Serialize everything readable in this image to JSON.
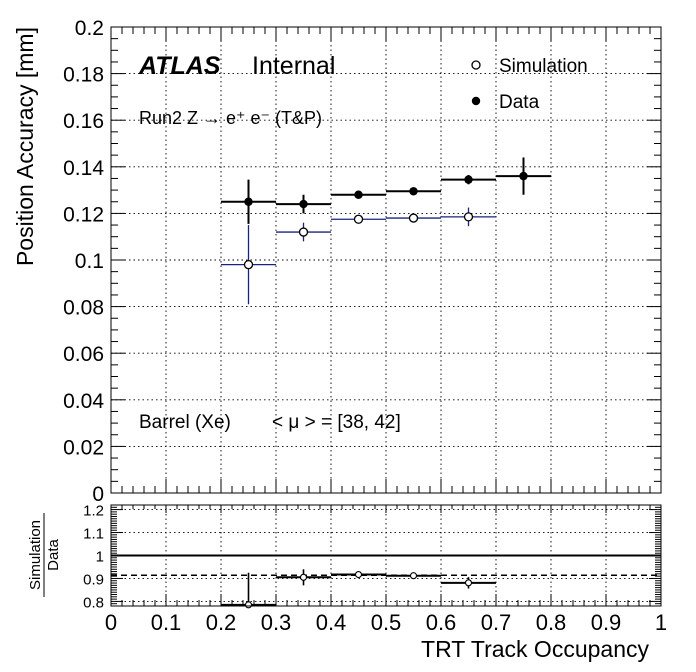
{
  "chart_data": [
    {
      "type": "scatter",
      "panel": "main",
      "xlabel": "",
      "ylabel": "Position Accuracy [mm]",
      "xlim": [
        0,
        1
      ],
      "ylim": [
        0,
        0.2
      ],
      "grid": true,
      "legend_position": "top-right",
      "y_ticks": [
        "0",
        "0.02",
        "0.04",
        "0.06",
        "0.08",
        "0.1",
        "0.12",
        "0.14",
        "0.16",
        "0.18",
        "0.2"
      ],
      "annotations": {
        "atlas": "ATLAS",
        "internal": "Internal",
        "run": "Run2 Z → e⁺ e⁻ (T&P)",
        "region": "Barrel (Xe)",
        "mu": "< μ > = [38, 42]"
      },
      "series": [
        {
          "name": "Simulation",
          "marker": "open-circle",
          "color": "#1a237e",
          "x": [
            0.25,
            0.35,
            0.45,
            0.55,
            0.65
          ],
          "xerr": 0.05,
          "y": [
            0.098,
            0.112,
            0.1175,
            0.118,
            0.1185
          ],
          "yerr": [
            0.017,
            0.004,
            0.0015,
            0.0015,
            0.004
          ]
        },
        {
          "name": "Data",
          "marker": "filled-circle",
          "color": "#000000",
          "x": [
            0.25,
            0.35,
            0.45,
            0.55,
            0.65,
            0.75
          ],
          "xerr": 0.05,
          "y": [
            0.125,
            0.124,
            0.128,
            0.1295,
            0.1345,
            0.136
          ],
          "yerr": [
            0.0095,
            0.004,
            0.0015,
            0.0015,
            0.002,
            0.008
          ]
        }
      ]
    },
    {
      "type": "scatter",
      "panel": "ratio",
      "xlabel": "TRT Track Occupancy",
      "ylabel_top": "Simulation",
      "ylabel_bottom": "Data",
      "xlim": [
        0,
        1
      ],
      "ylim": [
        0.78,
        1.22
      ],
      "grid": true,
      "reference_line": 1.0,
      "fit_line": 0.914,
      "x_ticks": [
        "0",
        "0.1",
        "0.2",
        "0.3",
        "0.4",
        "0.5",
        "0.6",
        "0.7",
        "0.8",
        "0.9",
        "1"
      ],
      "y_ticks": [
        "0.8",
        "0.9",
        "1",
        "1.1",
        "1.2"
      ],
      "series": [
        {
          "name": "Simulation / Data",
          "marker": "open-circle",
          "color": "#000000",
          "x": [
            0.25,
            0.35,
            0.45,
            0.55,
            0.65
          ],
          "xerr": 0.05,
          "y": [
            0.785,
            0.905,
            0.917,
            0.912,
            0.881
          ],
          "yerr": [
            0.14,
            0.035,
            0.008,
            0.006,
            0.025
          ]
        }
      ]
    }
  ]
}
